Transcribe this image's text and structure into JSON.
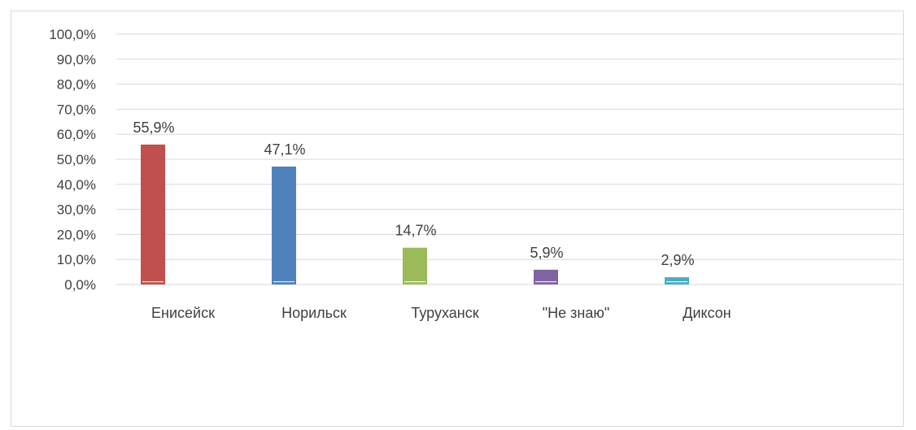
{
  "chart_data": {
    "type": "bar",
    "categories": [
      "Енисейск",
      "Норильск",
      "Туруханск",
      "\"Не знаю\"",
      "Диксон"
    ],
    "values": [
      55.9,
      47.1,
      14.7,
      5.9,
      2.9
    ],
    "data_labels": [
      "55,9%",
      "47,1%",
      "14,7%",
      "5,9%",
      "2,9%"
    ],
    "colors": [
      "#c0504d",
      "#4f81bd",
      "#9bbb59",
      "#8064a2",
      "#4bacc6"
    ],
    "ylim": [
      0,
      100
    ],
    "yticks": [
      0,
      10,
      20,
      30,
      40,
      50,
      60,
      70,
      80,
      90,
      100
    ],
    "ytick_labels": [
      "0,0%",
      "10,0%",
      "20,0%",
      "30,0%",
      "40,0%",
      "50,0%",
      "60,0%",
      "70,0%",
      "80,0%",
      "90,0%",
      "100,0%"
    ],
    "grid": true,
    "legend": "none"
  }
}
